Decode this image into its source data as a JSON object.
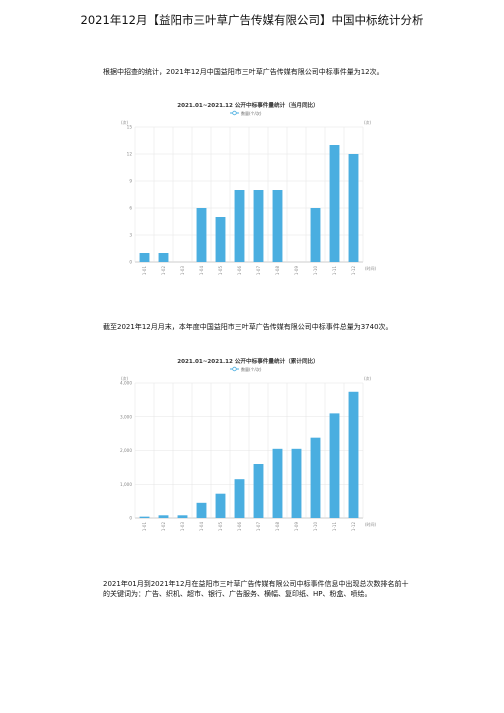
{
  "page": {
    "title": "2021年12月【益阳市三叶草广告传媒有限公司】中国中标统计分析",
    "paragraph1": "根据中招查的统计，2021年12月中国益阳市三叶草广告传媒有限公司中标事件量为12次。",
    "paragraph2": "截至2021年12月月末，本年度中国益阳市三叶草广告传媒有限公司中标事件总量为3740次。",
    "paragraph3": "2021年01月到2021年12月在益阳市三叶草广告传媒有限公司中标事件信息中出现总次数排名前十的关键词为：广告、织机、超市、银行、广告服务、横幅、复印纸、HP、粉盒、喷绘。"
  },
  "chart_data": [
    {
      "type": "bar",
      "title": "2021.01~2021.12 公开中标事件量统计（当月同比）",
      "legend": "数量(个/次)",
      "ylabel_left": "(次)",
      "ylabel_right": "(次)",
      "xlabel": "(时间)",
      "categories": [
        "2021-01",
        "2021-02",
        "2021-03",
        "2021-04",
        "2021-05",
        "2021-06",
        "2021-07",
        "2021-08",
        "2021-09",
        "2021-10",
        "2021-11",
        "2021-12"
      ],
      "values": [
        1,
        1,
        0,
        6,
        5,
        8,
        8,
        8,
        0,
        6,
        13,
        12
      ],
      "ylim": [
        0,
        15
      ],
      "yticks": [
        0,
        3,
        6,
        9,
        12,
        15
      ],
      "ytick_labels": [
        "0",
        "3",
        "6",
        "9",
        "12",
        "15"
      ],
      "color": "#4aaee0"
    },
    {
      "type": "bar",
      "title": "2021.01~2021.12 公开中标事件量统计（累计同比）",
      "legend": "数量(个/次)",
      "ylabel_left": "(次)",
      "ylabel_right": "(次)",
      "xlabel": "(时间)",
      "categories": [
        "2021-01",
        "2021-02",
        "2021-03",
        "2021-04",
        "2021-05",
        "2021-06",
        "2021-07",
        "2021-08",
        "2021-09",
        "2021-10",
        "2021-11",
        "2021-12"
      ],
      "values": [
        40,
        80,
        80,
        450,
        720,
        1150,
        1600,
        2050,
        2050,
        2380,
        3100,
        3740
      ],
      "ylim": [
        0,
        4000
      ],
      "yticks": [
        0,
        1000,
        2000,
        3000,
        4000
      ],
      "ytick_labels": [
        "0",
        "1,000",
        "2,000",
        "3,000",
        "4,000"
      ],
      "color": "#4aaee0"
    }
  ]
}
